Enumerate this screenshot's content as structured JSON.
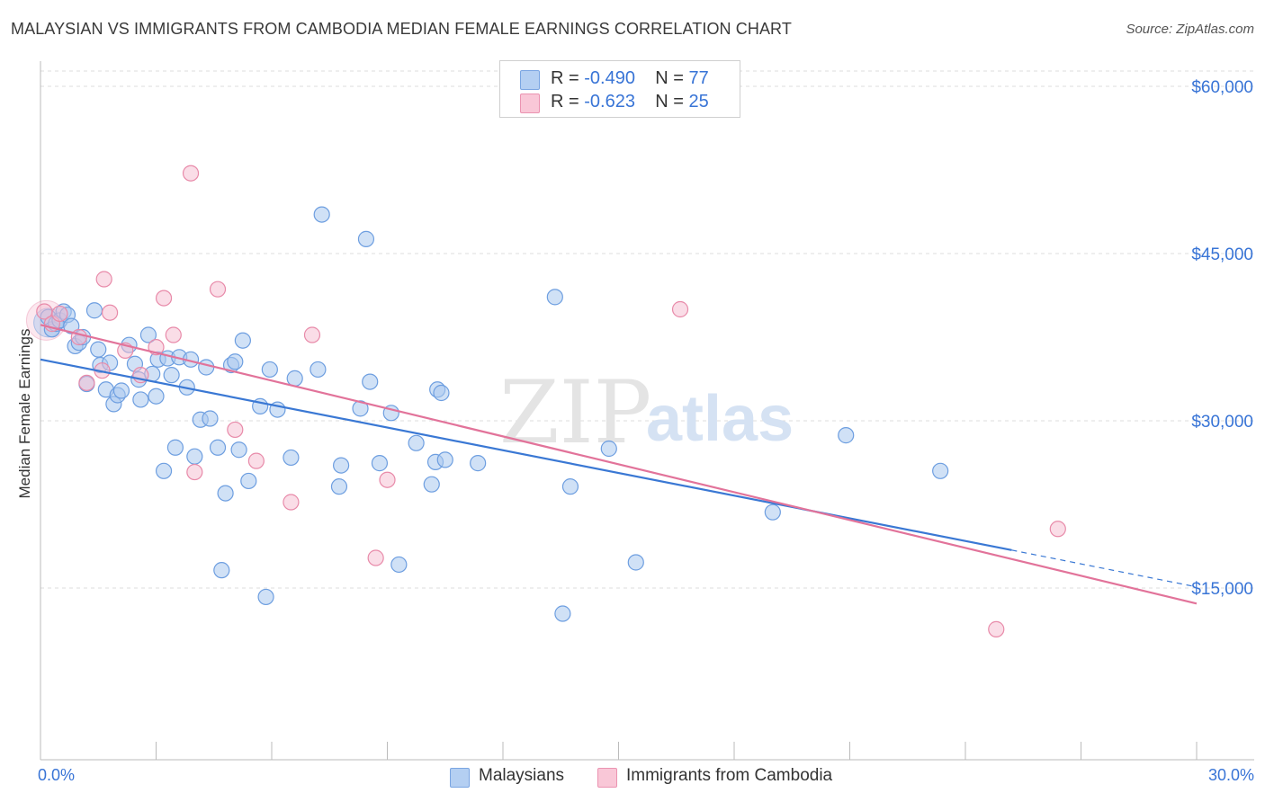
{
  "title": "MALAYSIAN VS IMMIGRANTS FROM CAMBODIA MEDIAN FEMALE EARNINGS CORRELATION CHART",
  "source": "Source: ZipAtlas.com",
  "watermark": {
    "zip": "ZIP",
    "atlas": "atlas"
  },
  "legend_top": {
    "rows": [
      {
        "r_label": "R = ",
        "r_value": "-0.490",
        "n_label": "N = ",
        "n_value": "77"
      },
      {
        "r_label": "R = ",
        "r_value": " -0.623",
        "n_label": "N = ",
        "n_value": "25"
      }
    ]
  },
  "legend_bottom": {
    "items": [
      "Malaysians",
      "Immigrants from Cambodia"
    ]
  },
  "colors": {
    "blue_fill": "#a9c8ef",
    "blue_stroke": "#6d9ee0",
    "blue_line": "#3a78d4",
    "pink_fill": "#f6bcd0",
    "pink_stroke": "#e88aa9",
    "pink_line": "#e2739a",
    "tick_label": "#3874d6",
    "grid": "#dcdcdc"
  },
  "chart_data": {
    "type": "scatter",
    "title": "MALAYSIAN VS IMMIGRANTS FROM CAMBODIA MEDIAN FEMALE EARNINGS CORRELATION CHART",
    "xlabel": "",
    "ylabel": "Median Female Earnings",
    "xlim": [
      0,
      30
    ],
    "ylim": [
      0,
      62000
    ],
    "x_tick_labels": [
      "0.0%",
      "30.0%"
    ],
    "y_ticks": [
      15000,
      30000,
      45000,
      60000
    ],
    "y_tick_labels": [
      "$15,000",
      "$30,000",
      "$45,000",
      "$60,000"
    ],
    "grid": "horizontal dashed",
    "legend_position": "top-center",
    "series": [
      {
        "name": "Malaysians",
        "r": -0.49,
        "n": 77,
        "trend": {
          "x0": 0,
          "y0": 35500,
          "x1": 25.2,
          "y1": 18400,
          "dash_to_x": 30,
          "dash_to_y": 15100
        },
        "points": [
          [
            0.2,
            39300
          ],
          [
            0.3,
            38200
          ],
          [
            0.4,
            38700
          ],
          [
            0.5,
            39000
          ],
          [
            0.6,
            39800
          ],
          [
            0.7,
            39500
          ],
          [
            0.8,
            38500
          ],
          [
            0.9,
            36700
          ],
          [
            1.0,
            37000
          ],
          [
            1.1,
            37500
          ],
          [
            1.2,
            33300
          ],
          [
            1.4,
            39900
          ],
          [
            1.5,
            36400
          ],
          [
            1.55,
            35000
          ],
          [
            1.7,
            32800
          ],
          [
            1.8,
            35200
          ],
          [
            1.9,
            31500
          ],
          [
            2.0,
            32300
          ],
          [
            2.1,
            32700
          ],
          [
            2.3,
            36800
          ],
          [
            2.45,
            35100
          ],
          [
            2.55,
            33700
          ],
          [
            2.6,
            31900
          ],
          [
            2.8,
            37700
          ],
          [
            2.9,
            34200
          ],
          [
            3.0,
            32200
          ],
          [
            3.05,
            35500
          ],
          [
            3.2,
            25500
          ],
          [
            3.3,
            35600
          ],
          [
            3.4,
            34100
          ],
          [
            3.5,
            27600
          ],
          [
            3.6,
            35700
          ],
          [
            3.8,
            33000
          ],
          [
            3.9,
            35500
          ],
          [
            4.0,
            26800
          ],
          [
            4.15,
            30100
          ],
          [
            4.3,
            34800
          ],
          [
            4.4,
            30200
          ],
          [
            4.6,
            27600
          ],
          [
            4.7,
            16600
          ],
          [
            4.8,
            23500
          ],
          [
            4.95,
            35000
          ],
          [
            5.05,
            35300
          ],
          [
            5.15,
            27400
          ],
          [
            5.25,
            37200
          ],
          [
            5.4,
            24600
          ],
          [
            5.7,
            31300
          ],
          [
            5.85,
            14200
          ],
          [
            5.95,
            34600
          ],
          [
            6.15,
            31000
          ],
          [
            6.5,
            26700
          ],
          [
            6.6,
            33800
          ],
          [
            7.2,
            34600
          ],
          [
            7.3,
            48500
          ],
          [
            7.75,
            24100
          ],
          [
            7.8,
            26000
          ],
          [
            8.3,
            31100
          ],
          [
            8.45,
            46300
          ],
          [
            8.55,
            33500
          ],
          [
            8.8,
            26200
          ],
          [
            9.1,
            30700
          ],
          [
            9.3,
            17100
          ],
          [
            9.75,
            28000
          ],
          [
            10.15,
            24300
          ],
          [
            10.25,
            26300
          ],
          [
            10.5,
            26500
          ],
          [
            10.3,
            32800
          ],
          [
            10.4,
            32500
          ],
          [
            11.35,
            26200
          ],
          [
            13.35,
            41100
          ],
          [
            13.55,
            12700
          ],
          [
            13.75,
            24100
          ],
          [
            14.75,
            27500
          ],
          [
            15.45,
            17300
          ],
          [
            19.0,
            21800
          ],
          [
            20.9,
            28700
          ],
          [
            23.35,
            25500
          ]
        ]
      },
      {
        "name": "Immigrants from Cambodia",
        "r": -0.623,
        "n": 25,
        "trend": {
          "x0": 0,
          "y0": 38600,
          "x1": 30,
          "y1": 13600
        },
        "points": [
          [
            0.1,
            39800
          ],
          [
            0.3,
            38700
          ],
          [
            0.5,
            39600
          ],
          [
            1.0,
            37500
          ],
          [
            1.2,
            33400
          ],
          [
            1.6,
            34500
          ],
          [
            1.65,
            42700
          ],
          [
            1.8,
            39700
          ],
          [
            2.2,
            36300
          ],
          [
            2.6,
            34100
          ],
          [
            3.0,
            36600
          ],
          [
            3.2,
            41000
          ],
          [
            3.45,
            37700
          ],
          [
            3.9,
            52200
          ],
          [
            4.0,
            25400
          ],
          [
            4.6,
            41800
          ],
          [
            5.05,
            29200
          ],
          [
            5.6,
            26400
          ],
          [
            6.5,
            22700
          ],
          [
            7.05,
            37700
          ],
          [
            8.7,
            17700
          ],
          [
            9.0,
            24700
          ],
          [
            16.6,
            40000
          ],
          [
            24.8,
            11300
          ],
          [
            26.4,
            20300
          ]
        ]
      }
    ]
  }
}
